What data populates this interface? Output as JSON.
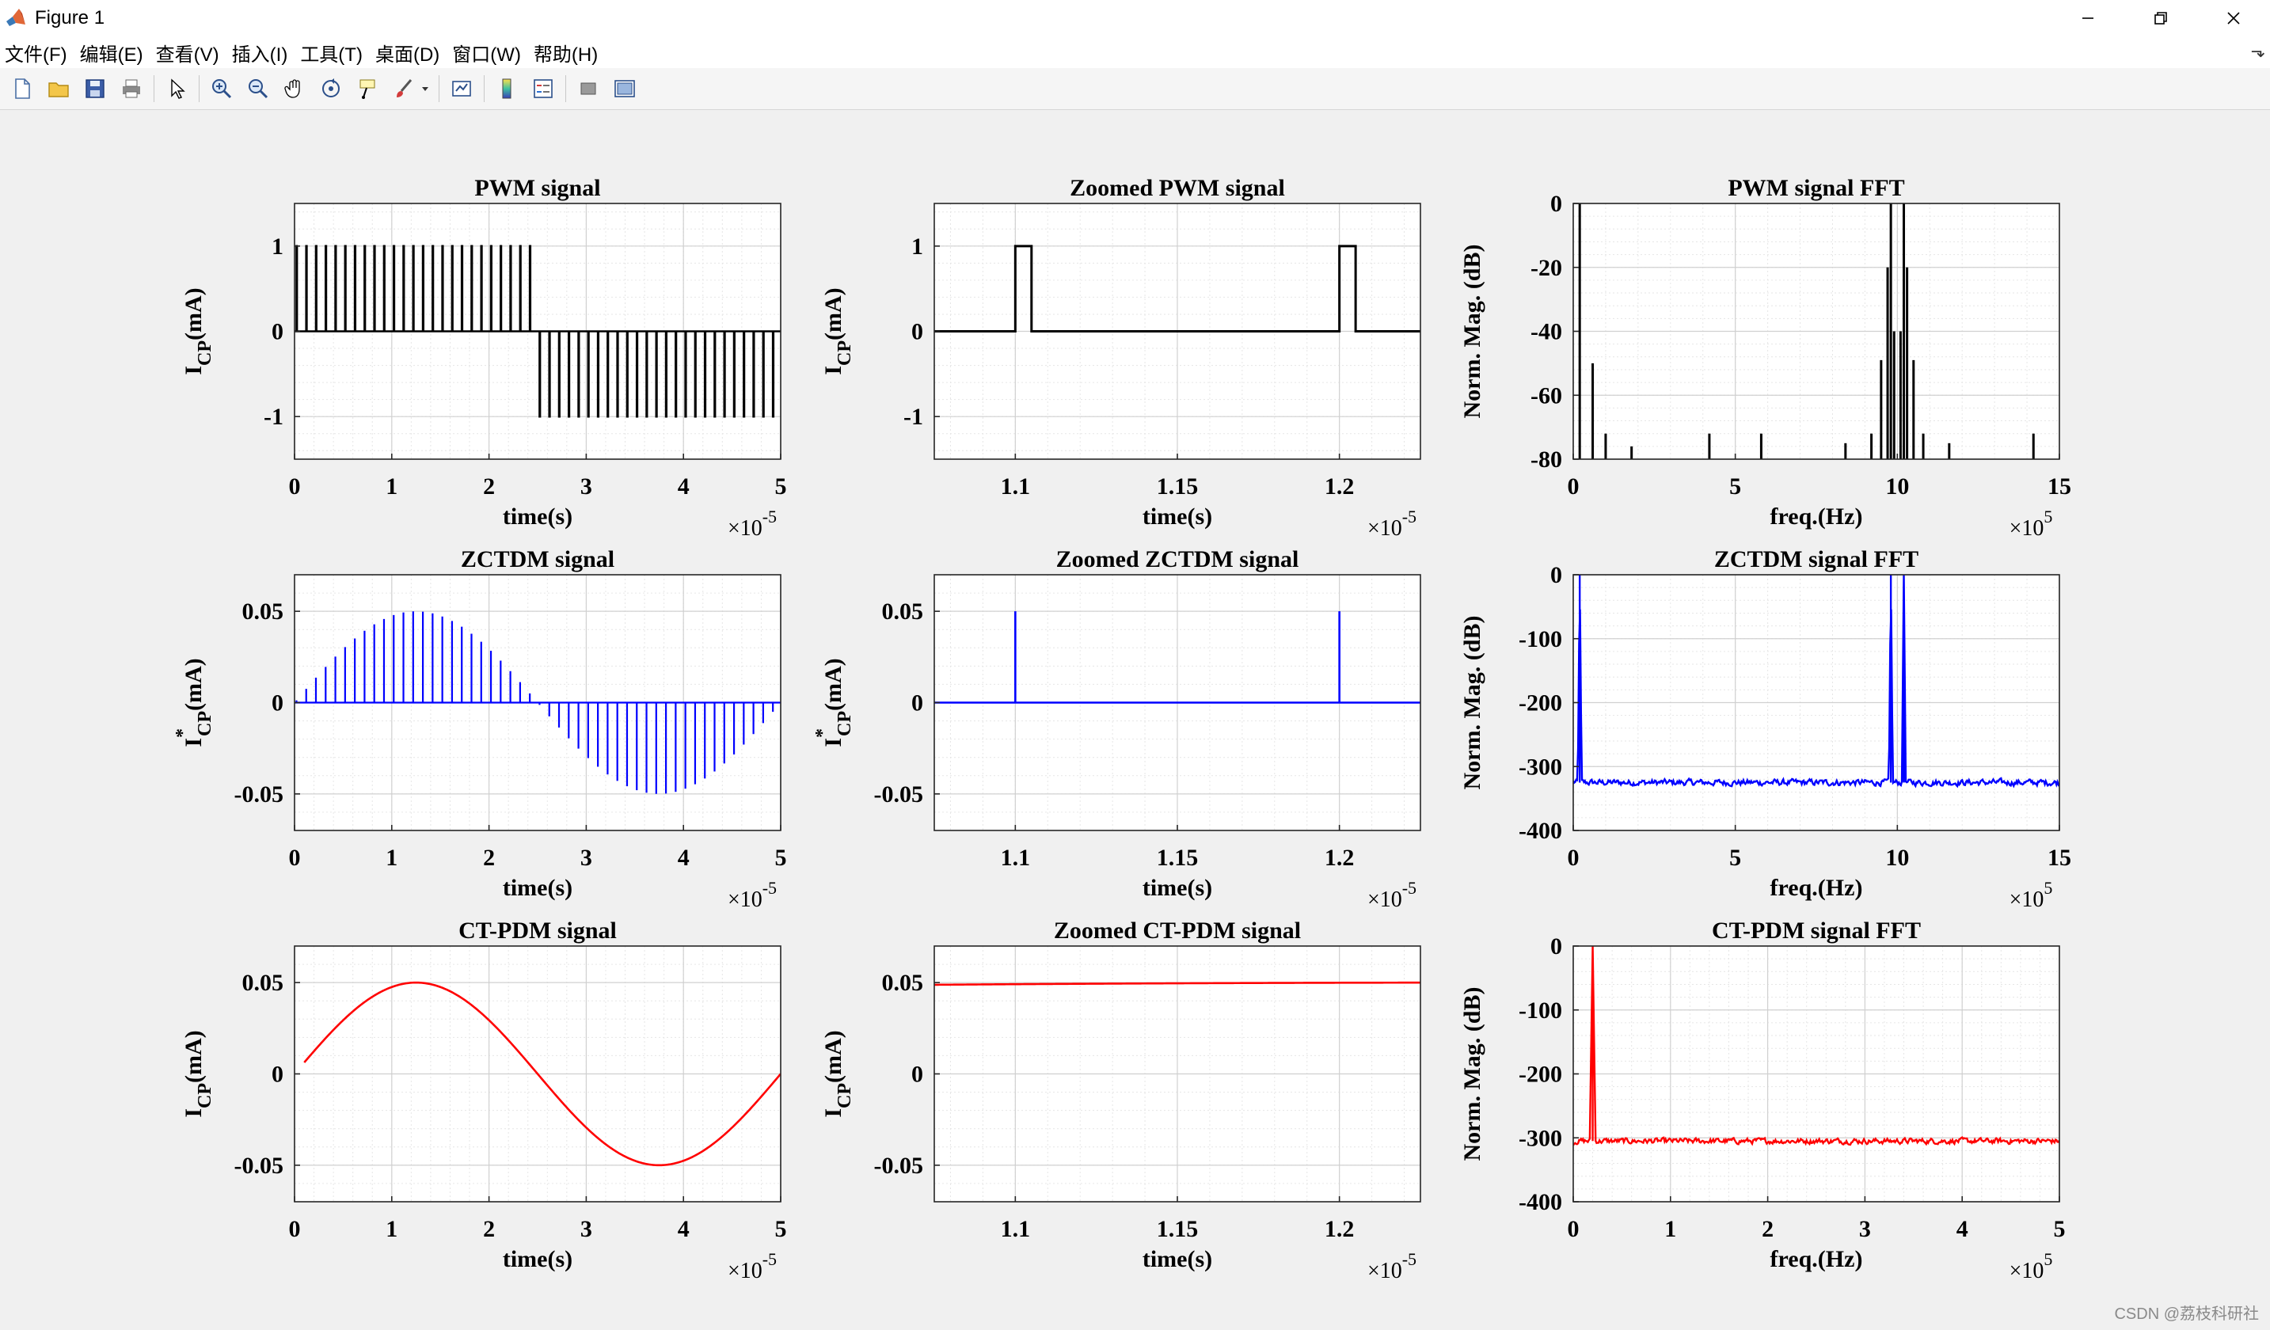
{
  "window": {
    "title": "Figure 1",
    "controls": [
      "minimize-icon",
      "restore-icon",
      "close-icon"
    ]
  },
  "menu": {
    "items": [
      "文件(F)",
      "编辑(E)",
      "查看(V)",
      "插入(I)",
      "工具(T)",
      "桌面(D)",
      "窗口(W)",
      "帮助(H)"
    ]
  },
  "toolbar": {
    "icons": [
      "new-figure-icon",
      "open-icon",
      "save-icon",
      "print-icon",
      "pointer-icon",
      "zoom-in-icon",
      "zoom-out-icon",
      "pan-icon",
      "rotate-3d-icon",
      "data-cursor-icon",
      "brush-icon",
      "link-plot-icon",
      "colorbar-icon",
      "legend-icon",
      "hide-plot-tools-icon",
      "show-plot-tools-icon"
    ]
  },
  "watermark": "CSDN @荔枝科研社",
  "colors": {
    "pwm": "#000000",
    "zctdm": "#0000ff",
    "ctpdm": "#ff0000",
    "axes_bg": "#ffffff",
    "figure_bg": "#f0f0f0"
  },
  "chart_data": [
    {
      "id": "pwm",
      "type": "line",
      "title": "PWM signal",
      "xlabel": "time(s)",
      "ylabel_main": "I",
      "ylabel_sub": "CP",
      "ylabel_sup": "",
      "ylabel_unit": "(mA)",
      "xlim": [
        0,
        5e-05
      ],
      "ylim": [
        -1.5,
        1.5
      ],
      "xticks": [
        0,
        1,
        2,
        3,
        4,
        5
      ],
      "yticks": [
        -1,
        0,
        1
      ],
      "ytick_labels": [
        "-1",
        "0",
        "1"
      ],
      "exponent": "-5",
      "exp_base": "×10",
      "color": "#000000",
      "signal": "pwm_pulses",
      "pulse_count": 50,
      "period_s": 1e-06,
      "pulse_width_s": 5e-08
    },
    {
      "id": "zoom-pwm",
      "type": "line",
      "title": "Zoomed PWM signal",
      "xlabel": "time(s)",
      "ylabel_main": "I",
      "ylabel_sub": "CP",
      "ylabel_sup": "",
      "ylabel_unit": "(mA)",
      "xlim": [
        1.075e-05,
        1.225e-05
      ],
      "ylim": [
        -1.5,
        1.5
      ],
      "xticks": [
        1.1,
        1.15,
        1.2
      ],
      "yticks": [
        -1,
        0,
        1
      ],
      "ytick_labels": [
        "-1",
        "0",
        "1"
      ],
      "exponent": "-5",
      "exp_base": "×10",
      "color": "#000000",
      "signal": "pwm_zoom",
      "pulses": [
        [
          1.1e-05,
          1.105e-05
        ],
        [
          1.2e-05,
          1.205e-05
        ]
      ]
    },
    {
      "id": "pwm-fft",
      "type": "bar",
      "title": "PWM signal FFT",
      "xlabel": "freq.(Hz)",
      "ylabel_main": "Norm. Mag. (dB)",
      "ylabel_sub": "",
      "ylabel_sup": "",
      "ylabel_unit": "",
      "xlim": [
        0,
        1500000.0
      ],
      "ylim": [
        -80,
        0
      ],
      "xticks": [
        0,
        5,
        10,
        15
      ],
      "yticks": [
        -80,
        -60,
        -40,
        -20,
        0
      ],
      "ytick_labels": [
        "-80",
        "-60",
        "-40",
        "-20",
        "0"
      ],
      "exponent": "5",
      "exp_base": "×10",
      "color": "#000000",
      "signal": "stems",
      "stems": [
        [
          20000,
          0
        ],
        [
          60000,
          -50
        ],
        [
          100000,
          -72
        ],
        [
          180000,
          -76
        ],
        [
          420000,
          -72
        ],
        [
          580000,
          -72
        ],
        [
          840000,
          -75
        ],
        [
          920000,
          -72
        ],
        [
          950000,
          -49
        ],
        [
          970000,
          -20
        ],
        [
          980000,
          0
        ],
        [
          990000,
          -40
        ],
        [
          1010000,
          -40
        ],
        [
          1020000,
          0
        ],
        [
          1030000,
          -20
        ],
        [
          1050000,
          -49
        ],
        [
          1080000,
          -72
        ],
        [
          1160000,
          -75
        ],
        [
          1420000,
          -72
        ]
      ]
    },
    {
      "id": "zctdm",
      "type": "line",
      "title": "ZCTDM signal",
      "xlabel": "time(s)",
      "ylabel_main": "I",
      "ylabel_sub": "CP",
      "ylabel_sup": "*",
      "ylabel_unit": "(mA)",
      "xlim": [
        0,
        5e-05
      ],
      "ylim": [
        -0.07,
        0.07
      ],
      "xticks": [
        0,
        1,
        2,
        3,
        4,
        5
      ],
      "yticks": [
        -0.05,
        0,
        0.05
      ],
      "ytick_labels": [
        "-0.05",
        "0",
        "0.05"
      ],
      "exponent": "-5",
      "exp_base": "×10",
      "color": "#0000ff",
      "signal": "sine_spikes",
      "amplitude": 0.05,
      "freq_hz": 20000,
      "spike_count": 50,
      "period_s": 1e-06
    },
    {
      "id": "zoom-zctdm",
      "type": "line",
      "title": "Zoomed ZCTDM signal",
      "xlabel": "time(s)",
      "ylabel_main": "I",
      "ylabel_sub": "CP",
      "ylabel_sup": "*",
      "ylabel_unit": "(mA)",
      "xlim": [
        1.075e-05,
        1.225e-05
      ],
      "ylim": [
        -0.07,
        0.07
      ],
      "xticks": [
        1.1,
        1.15,
        1.2
      ],
      "yticks": [
        -0.05,
        0,
        0.05
      ],
      "ytick_labels": [
        "-0.05",
        "0",
        "0.05"
      ],
      "exponent": "-5",
      "exp_base": "×10",
      "color": "#0000ff",
      "signal": "spike_zoom",
      "spikes": [
        [
          1.1e-05,
          0.05
        ],
        [
          1.2e-05,
          0.05
        ]
      ]
    },
    {
      "id": "zctdm-fft",
      "type": "line",
      "title": "ZCTDM signal FFT",
      "xlabel": "freq.(Hz)",
      "ylabel_main": "Norm. Mag. (dB)",
      "ylabel_sub": "",
      "ylabel_sup": "",
      "ylabel_unit": "",
      "xlim": [
        0,
        1500000.0
      ],
      "ylim": [
        -400,
        0
      ],
      "xticks": [
        0,
        5,
        10,
        15
      ],
      "yticks": [
        -400,
        -300,
        -200,
        -100,
        0
      ],
      "ytick_labels": [
        "-400",
        "-300",
        "-200",
        "-100",
        "0"
      ],
      "exponent": "5",
      "exp_base": "×10",
      "color": "#0000ff",
      "signal": "fft_noise",
      "floor_db": -325,
      "noise_db": 8,
      "peaks": [
        [
          20000,
          0
        ],
        [
          980000,
          0
        ],
        [
          1020000,
          0
        ]
      ],
      "peak_width_hz": 6000
    },
    {
      "id": "ctpdm",
      "type": "line",
      "title": "CT-PDM signal",
      "xlabel": "time(s)",
      "ylabel_main": "I",
      "ylabel_sub": "CP",
      "ylabel_sup": "",
      "ylabel_unit": "(mA)",
      "xlim": [
        0,
        5e-05
      ],
      "ylim": [
        -0.07,
        0.07
      ],
      "xticks": [
        0,
        1,
        2,
        3,
        4,
        5
      ],
      "yticks": [
        -0.05,
        0,
        0.05
      ],
      "ytick_labels": [
        "-0.05",
        "0",
        "0.05"
      ],
      "exponent": "-5",
      "exp_base": "×10",
      "color": "#ff0000",
      "signal": "sine",
      "amplitude": 0.05,
      "freq_hz": 20000,
      "x_start": 1e-06
    },
    {
      "id": "zoom-ctpdm",
      "type": "line",
      "title": "Zoomed CT-PDM signal",
      "xlabel": "time(s)",
      "ylabel_main": "I",
      "ylabel_sub": "CP",
      "ylabel_sup": "",
      "ylabel_unit": "(mA)",
      "xlim": [
        1.075e-05,
        1.225e-05
      ],
      "ylim": [
        -0.07,
        0.07
      ],
      "xticks": [
        1.1,
        1.15,
        1.2
      ],
      "yticks": [
        -0.05,
        0,
        0.05
      ],
      "ytick_labels": [
        "-0.05",
        "0",
        "0.05"
      ],
      "exponent": "-5",
      "exp_base": "×10",
      "color": "#ff0000",
      "signal": "sine",
      "amplitude": 0.05,
      "freq_hz": 20000,
      "x_start": 1.075e-05
    },
    {
      "id": "ctpdm-fft",
      "type": "line",
      "title": "CT-PDM signal FFT",
      "xlabel": "freq.(Hz)",
      "ylabel_main": "Norm. Mag. (dB)",
      "ylabel_sub": "",
      "ylabel_sup": "",
      "ylabel_unit": "",
      "xlim": [
        0,
        500000.0
      ],
      "ylim": [
        -400,
        0
      ],
      "xticks": [
        0,
        1,
        2,
        3,
        4,
        5
      ],
      "yticks": [
        -400,
        -300,
        -200,
        -100,
        0
      ],
      "ytick_labels": [
        "-400",
        "-300",
        "-200",
        "-100",
        "0"
      ],
      "exponent": "5",
      "exp_base": "×10",
      "color": "#ff0000",
      "signal": "fft_noise",
      "floor_db": -305,
      "noise_db": 7,
      "peaks": [
        [
          20000,
          0
        ]
      ],
      "peak_width_hz": 3000
    }
  ]
}
